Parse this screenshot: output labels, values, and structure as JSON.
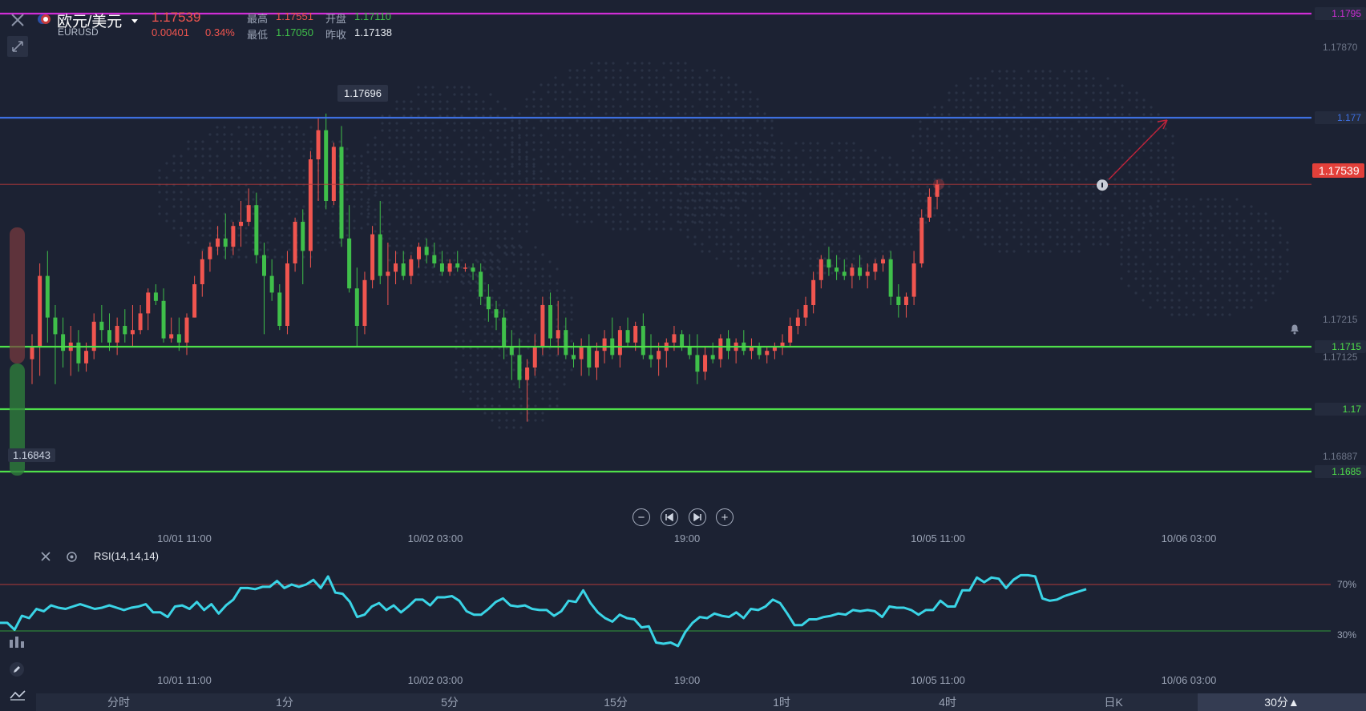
{
  "header": {
    "pair_name": "欧元/美元",
    "pair_code": "EURUSD",
    "last_price": "1.17539",
    "change": "0.00401",
    "change_pct": "0.34%",
    "high_label": "最高",
    "high_value": "1.17551",
    "open_label": "开盘",
    "open_value": "1.17110",
    "low_label": "最低",
    "low_value": "1.17050",
    "prev_close_label": "昨收",
    "prev_close_value": "1.17138"
  },
  "levels": [
    {
      "price": 1.1795,
      "label": "1.1795",
      "color": "#d02ed6"
    },
    {
      "price": 1.177,
      "label": "1.177",
      "color": "#3d6fe0"
    },
    {
      "price": 1.1715,
      "label": "1.1715",
      "color": "#4fe04a"
    },
    {
      "price": 1.17,
      "label": "1.17",
      "color": "#4fe04a"
    },
    {
      "price": 1.1685,
      "label": "1.1685",
      "color": "#4fe04a"
    }
  ],
  "price_axis": [
    {
      "price": 1.1787,
      "label": "1.17870"
    },
    {
      "price": 1.17215,
      "label": "1.17215"
    },
    {
      "price": 1.17125,
      "label": "1.17125"
    },
    {
      "price": 1.16887,
      "label": "1.16887"
    }
  ],
  "current_price_tag": "1.17539",
  "high_marker": "1.17696",
  "low_marker": "1.16843",
  "time_axis": [
    "10/01 11:00",
    "10/02 03:00",
    "19:00",
    "10/05 11:00",
    "10/06 03:00"
  ],
  "rsi": {
    "title": "RSI(14,14,14)",
    "upper_label": "70%",
    "lower_label": "30%",
    "upper": 70,
    "lower": 30,
    "values": [
      37,
      37,
      31,
      43,
      41,
      49,
      47,
      52,
      50,
      49,
      51,
      53,
      51,
      49,
      50,
      52,
      50,
      48,
      50,
      51,
      53,
      46,
      46,
      42,
      51,
      52,
      49,
      55,
      48,
      53,
      45,
      52,
      57,
      67,
      67,
      66,
      68,
      68,
      73,
      67,
      70,
      68,
      70,
      74,
      67,
      77,
      63,
      62,
      55,
      42,
      44,
      51,
      54,
      48,
      52,
      46,
      51,
      57,
      57,
      52,
      59,
      59,
      60,
      56,
      47,
      44,
      44,
      49,
      55,
      58,
      52,
      51,
      52,
      49,
      48,
      48,
      43,
      47,
      56,
      55,
      65,
      54,
      46,
      41,
      38,
      44,
      41,
      40,
      33,
      34,
      20,
      19,
      20,
      17,
      29,
      37,
      42,
      41,
      45,
      43,
      42,
      46,
      41,
      49,
      48,
      51,
      57,
      54,
      45,
      35,
      35,
      40,
      40,
      42,
      43,
      45,
      44,
      48,
      47,
      48,
      47,
      42,
      51,
      50,
      50,
      48,
      44,
      48,
      48,
      56,
      51,
      51,
      65,
      65,
      76,
      72,
      76,
      75,
      67,
      74,
      78,
      78,
      77,
      58,
      56,
      57,
      60,
      62,
      64,
      66
    ]
  },
  "tabs": [
    "分时",
    "1分",
    "5分",
    "15分",
    "1时",
    "4时",
    "日K",
    "30分▲"
  ],
  "active_tab": "30分▲",
  "colors": {
    "up": "#f0554f",
    "down": "#3fbf4a",
    "rsi": "#3ad4e6",
    "background": "#1c2233"
  },
  "chart_data": {
    "type": "candlestick",
    "ylim": [
      1.16843,
      1.17696
    ],
    "x": [
      "10/01 11:00",
      "10/02 03:00",
      "19:00",
      "10/05 11:00",
      "10/06 03:00"
    ],
    "candles": [
      [
        1.1712,
        1.1718,
        1.1706,
        1.1715
      ],
      [
        1.1715,
        1.1735,
        1.1708,
        1.1732
      ],
      [
        1.1732,
        1.1738,
        1.1716,
        1.1722
      ],
      [
        1.1722,
        1.1725,
        1.1706,
        1.1718
      ],
      [
        1.1718,
        1.1722,
        1.171,
        1.1714
      ],
      [
        1.1714,
        1.172,
        1.1708,
        1.1716
      ],
      [
        1.1716,
        1.1719,
        1.1709,
        1.1711
      ],
      [
        1.1711,
        1.1716,
        1.1709,
        1.1714
      ],
      [
        1.1714,
        1.1723,
        1.1712,
        1.1721
      ],
      [
        1.1721,
        1.1725,
        1.1716,
        1.1719
      ],
      [
        1.1719,
        1.1723,
        1.1714,
        1.1716
      ],
      [
        1.1716,
        1.1722,
        1.1713,
        1.172
      ],
      [
        1.172,
        1.1724,
        1.1716,
        1.1718
      ],
      [
        1.1718,
        1.1725,
        1.1715,
        1.1719
      ],
      [
        1.1719,
        1.1725,
        1.1718,
        1.1723
      ],
      [
        1.1723,
        1.1729,
        1.1719,
        1.1728
      ],
      [
        1.1728,
        1.173,
        1.1725,
        1.1726
      ],
      [
        1.1726,
        1.1729,
        1.1716,
        1.1717
      ],
      [
        1.1717,
        1.1722,
        1.1716,
        1.1718
      ],
      [
        1.1718,
        1.1722,
        1.1714,
        1.1716
      ],
      [
        1.1716,
        1.1723,
        1.1713,
        1.1722
      ],
      [
        1.1722,
        1.1732,
        1.1722,
        1.173
      ],
      [
        1.173,
        1.1738,
        1.1727,
        1.1736
      ],
      [
        1.1736,
        1.174,
        1.1733,
        1.1739
      ],
      [
        1.1739,
        1.1744,
        1.1737,
        1.1741
      ],
      [
        1.1741,
        1.1747,
        1.1736,
        1.1739
      ],
      [
        1.1739,
        1.1745,
        1.1737,
        1.1744
      ],
      [
        1.1744,
        1.175,
        1.1739,
        1.1745
      ],
      [
        1.1745,
        1.1753,
        1.1744,
        1.1749
      ],
      [
        1.1749,
        1.1752,
        1.1735,
        1.1737
      ],
      [
        1.1737,
        1.174,
        1.1718,
        1.1732
      ],
      [
        1.1732,
        1.1736,
        1.1726,
        1.1728
      ],
      [
        1.1728,
        1.173,
        1.1719,
        1.172
      ],
      [
        1.172,
        1.1738,
        1.1718,
        1.1735
      ],
      [
        1.1735,
        1.1746,
        1.1733,
        1.1745
      ],
      [
        1.1745,
        1.1748,
        1.173,
        1.1738
      ],
      [
        1.1738,
        1.1762,
        1.1734,
        1.176
      ],
      [
        1.176,
        1.177,
        1.175,
        1.1767
      ],
      [
        1.1767,
        1.1771,
        1.1748,
        1.175
      ],
      [
        1.175,
        1.1764,
        1.1749,
        1.1763
      ],
      [
        1.1763,
        1.1768,
        1.1739,
        1.1741
      ],
      [
        1.1741,
        1.1749,
        1.1728,
        1.1729
      ],
      [
        1.1729,
        1.1734,
        1.1715,
        1.172
      ],
      [
        1.172,
        1.1733,
        1.1718,
        1.1731
      ],
      [
        1.1731,
        1.1744,
        1.1729,
        1.1742
      ],
      [
        1.1742,
        1.175,
        1.173,
        1.1732
      ],
      [
        1.1732,
        1.174,
        1.1725,
        1.1733
      ],
      [
        1.1733,
        1.1738,
        1.173,
        1.1735
      ],
      [
        1.1735,
        1.1738,
        1.1731,
        1.1732
      ],
      [
        1.1732,
        1.1737,
        1.173,
        1.1736
      ],
      [
        1.1736,
        1.174,
        1.1734,
        1.1739
      ],
      [
        1.1739,
        1.1741,
        1.1735,
        1.1737
      ],
      [
        1.1737,
        1.174,
        1.1734,
        1.1735
      ],
      [
        1.1735,
        1.1738,
        1.1732,
        1.1733
      ],
      [
        1.1733,
        1.1736,
        1.1732,
        1.1735
      ],
      [
        1.1735,
        1.1738,
        1.1733,
        1.1734
      ],
      [
        1.1734,
        1.1735,
        1.1733,
        1.1734
      ],
      [
        1.1734,
        1.1735,
        1.1731,
        1.1733
      ],
      [
        1.1733,
        1.1735,
        1.1725,
        1.1727
      ],
      [
        1.1727,
        1.173,
        1.1721,
        1.1724
      ],
      [
        1.1724,
        1.1726,
        1.1719,
        1.1722
      ],
      [
        1.1722,
        1.1724,
        1.1712,
        1.1715
      ],
      [
        1.1715,
        1.1719,
        1.1707,
        1.1713
      ],
      [
        1.1713,
        1.1717,
        1.1705,
        1.1707
      ],
      [
        1.1707,
        1.1712,
        1.1697,
        1.171
      ],
      [
        1.171,
        1.1718,
        1.1708,
        1.1715
      ],
      [
        1.1715,
        1.1727,
        1.1713,
        1.1725
      ],
      [
        1.1725,
        1.1728,
        1.1715,
        1.1717
      ],
      [
        1.1717,
        1.1726,
        1.1713,
        1.1719
      ],
      [
        1.1719,
        1.1722,
        1.1712,
        1.1713
      ],
      [
        1.1713,
        1.1716,
        1.171,
        1.1712
      ],
      [
        1.1712,
        1.1717,
        1.1708,
        1.1715
      ],
      [
        1.1715,
        1.1718,
        1.1708,
        1.171
      ],
      [
        1.171,
        1.1716,
        1.1707,
        1.1714
      ],
      [
        1.1714,
        1.1719,
        1.1711,
        1.1717
      ],
      [
        1.1717,
        1.1722,
        1.1712,
        1.1713
      ],
      [
        1.1713,
        1.172,
        1.171,
        1.1719
      ],
      [
        1.1719,
        1.1722,
        1.1715,
        1.1716
      ],
      [
        1.1716,
        1.1721,
        1.1714,
        1.172
      ],
      [
        1.172,
        1.1723,
        1.1712,
        1.1713
      ],
      [
        1.1713,
        1.1718,
        1.171,
        1.1712
      ],
      [
        1.1712,
        1.1716,
        1.1708,
        1.1714
      ],
      [
        1.1714,
        1.1717,
        1.171,
        1.1716
      ],
      [
        1.1716,
        1.172,
        1.1714,
        1.1718
      ],
      [
        1.1718,
        1.1719,
        1.1714,
        1.1715
      ],
      [
        1.1715,
        1.1718,
        1.1712,
        1.1713
      ],
      [
        1.1713,
        1.1718,
        1.1706,
        1.1709
      ],
      [
        1.1709,
        1.1715,
        1.1707,
        1.1713
      ],
      [
        1.1713,
        1.1716,
        1.1711,
        1.1712
      ],
      [
        1.1712,
        1.1718,
        1.171,
        1.1717
      ],
      [
        1.1717,
        1.1719,
        1.1712,
        1.1714
      ],
      [
        1.1714,
        1.1717,
        1.1711,
        1.1716
      ],
      [
        1.1716,
        1.1719,
        1.1713,
        1.1714
      ],
      [
        1.1714,
        1.1717,
        1.1712,
        1.1715
      ],
      [
        1.1715,
        1.1716,
        1.1712,
        1.1713
      ],
      [
        1.1713,
        1.1715,
        1.1711,
        1.1714
      ],
      [
        1.1714,
        1.1716,
        1.1712,
        1.1715
      ],
      [
        1.1715,
        1.1718,
        1.1713,
        1.1716
      ],
      [
        1.1716,
        1.1722,
        1.1715,
        1.172
      ],
      [
        1.172,
        1.1724,
        1.1718,
        1.1722
      ],
      [
        1.1722,
        1.1727,
        1.172,
        1.1725
      ],
      [
        1.1725,
        1.1733,
        1.1723,
        1.1731
      ],
      [
        1.1731,
        1.1737,
        1.1729,
        1.1736
      ],
      [
        1.1736,
        1.1739,
        1.1732,
        1.1734
      ],
      [
        1.1734,
        1.1737,
        1.1731,
        1.1733
      ],
      [
        1.1733,
        1.1736,
        1.1731,
        1.1732
      ],
      [
        1.1732,
        1.1735,
        1.1729,
        1.1734
      ],
      [
        1.1734,
        1.1737,
        1.1731,
        1.1732
      ],
      [
        1.1732,
        1.1735,
        1.1729,
        1.1733
      ],
      [
        1.1733,
        1.1736,
        1.1731,
        1.1735
      ],
      [
        1.1735,
        1.1737,
        1.1733,
        1.1736
      ],
      [
        1.1736,
        1.1738,
        1.1725,
        1.1727
      ],
      [
        1.1727,
        1.173,
        1.1722,
        1.1725
      ],
      [
        1.1725,
        1.1728,
        1.1722,
        1.1727
      ],
      [
        1.1727,
        1.1738,
        1.1725,
        1.1735
      ],
      [
        1.1735,
        1.1748,
        1.1734,
        1.1746
      ],
      [
        1.1746,
        1.1753,
        1.1745,
        1.1751
      ],
      [
        1.1751,
        1.1755,
        1.1748,
        1.1754
      ]
    ]
  }
}
